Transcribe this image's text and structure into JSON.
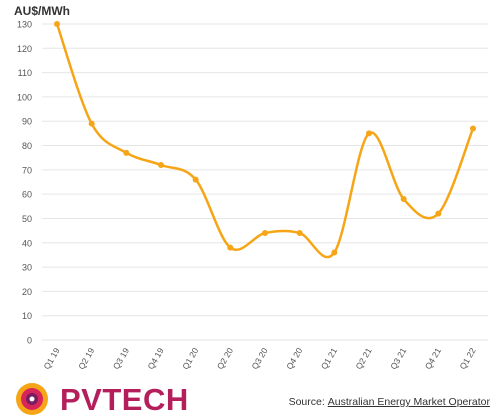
{
  "chart_data": {
    "type": "line",
    "ylabel": "AU$/MWh",
    "ylim": [
      0,
      130
    ],
    "yticks": [
      0,
      10,
      20,
      30,
      40,
      50,
      60,
      70,
      80,
      90,
      100,
      110,
      120,
      130
    ],
    "categories": [
      "Q1 19",
      "Q2 19",
      "Q3 19",
      "Q4 19",
      "Q1 20",
      "Q2 20",
      "Q3 20",
      "Q4 20",
      "Q1 21",
      "Q2 21",
      "Q3 21",
      "Q4 21",
      "Q1 22"
    ],
    "series": [
      {
        "values": [
          130,
          89,
          77,
          72,
          66,
          38,
          44,
          44,
          36,
          85,
          58,
          52,
          87
        ]
      }
    ],
    "grid": true,
    "line_color": "#f6a516",
    "grid_color": "#e6e6e6"
  },
  "footer": {
    "logo_text": "PVTECH",
    "source_prefix": "Source:",
    "source_link": "Australian Energy Market Operator"
  },
  "colors": {
    "brand": "#b41e5b",
    "accent": "#f6a516"
  }
}
